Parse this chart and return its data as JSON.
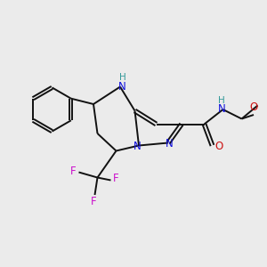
{
  "bg_color": "#ebebeb",
  "atom_colors": {
    "N": "#1010dd",
    "O": "#cc1111",
    "F": "#cc11cc",
    "C": "#000000",
    "H": "#339999"
  },
  "bond_color": "#111111",
  "lw": 1.4,
  "fs": 8.5,
  "fs_small": 7.5
}
